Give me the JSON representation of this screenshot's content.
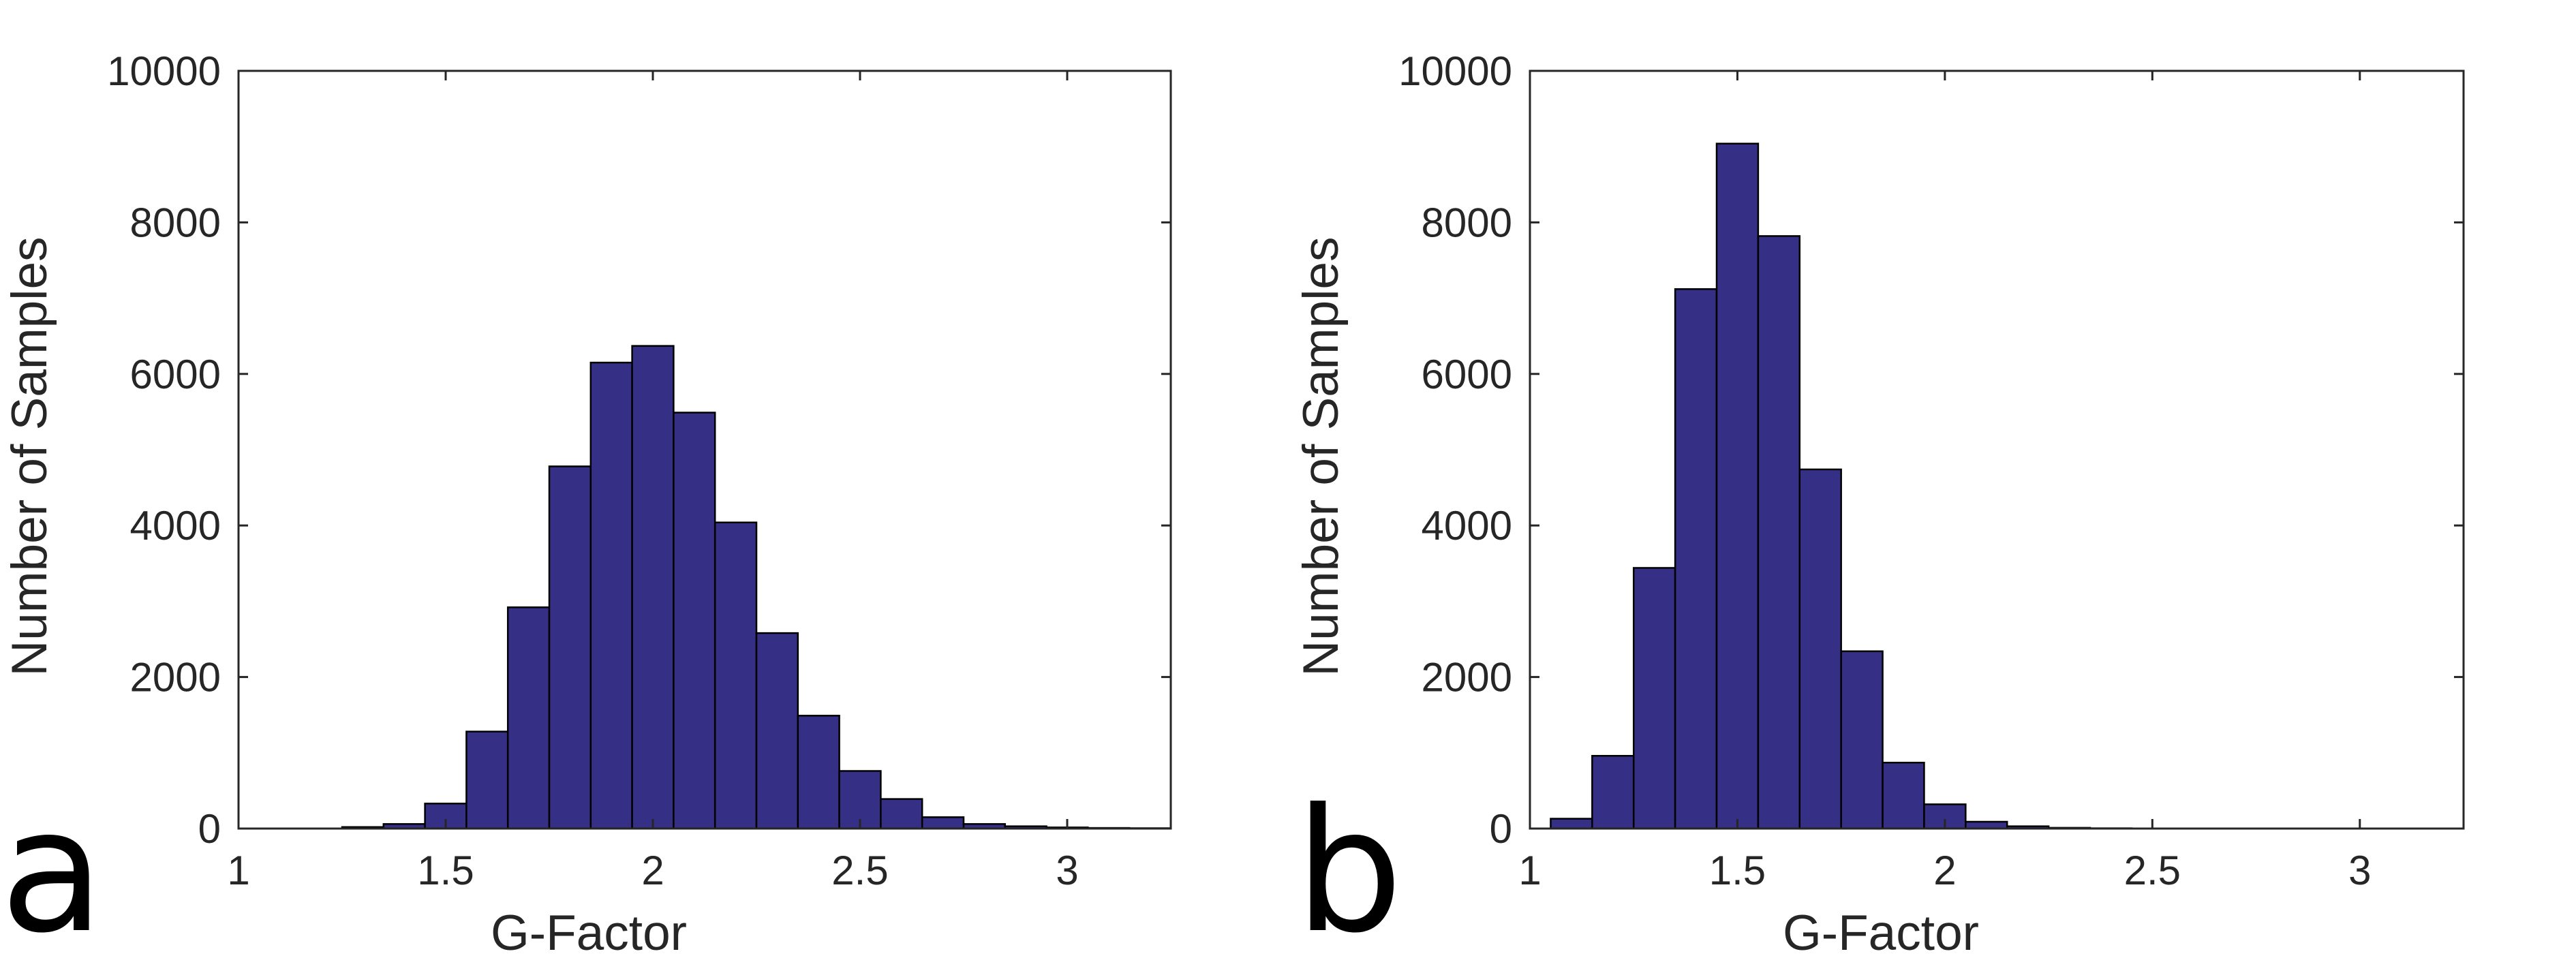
{
  "chart_data": [
    {
      "type": "bar",
      "panel_label": "a",
      "xlabel": "G-Factor",
      "ylabel": "Number of Samples",
      "xlim": [
        1,
        3.25
      ],
      "ylim": [
        0,
        10000
      ],
      "xticks": [
        1,
        1.5,
        2,
        2.5,
        3
      ],
      "xtick_labels": [
        "1",
        "1.5",
        "2",
        "2.5",
        "3"
      ],
      "yticks": [
        0,
        2000,
        4000,
        6000,
        8000,
        10000
      ],
      "ytick_labels": [
        "0",
        "2000",
        "4000",
        "6000",
        "8000",
        "10000"
      ],
      "grid": false,
      "bar_color": "#352F86",
      "bin_width": 0.1,
      "bins": [
        {
          "x0": 1.25,
          "value": 20
        },
        {
          "x0": 1.35,
          "value": 60
        },
        {
          "x0": 1.45,
          "value": 330
        },
        {
          "x0": 1.55,
          "value": 1280
        },
        {
          "x0": 1.65,
          "value": 2920
        },
        {
          "x0": 1.75,
          "value": 4780
        },
        {
          "x0": 1.85,
          "value": 6150
        },
        {
          "x0": 1.95,
          "value": 6370
        },
        {
          "x0": 2.05,
          "value": 5490
        },
        {
          "x0": 2.15,
          "value": 4040
        },
        {
          "x0": 2.25,
          "value": 2580
        },
        {
          "x0": 2.35,
          "value": 1490
        },
        {
          "x0": 2.45,
          "value": 760
        },
        {
          "x0": 2.55,
          "value": 390
        },
        {
          "x0": 2.65,
          "value": 150
        },
        {
          "x0": 2.75,
          "value": 60
        },
        {
          "x0": 2.85,
          "value": 30
        },
        {
          "x0": 2.95,
          "value": 15
        },
        {
          "x0": 3.05,
          "value": 8
        },
        {
          "x0": 3.15,
          "value": 5
        }
      ]
    },
    {
      "type": "bar",
      "panel_label": "b",
      "xlabel": "G-Factor",
      "ylabel": "Number of Samples",
      "xlim": [
        1,
        3.25
      ],
      "ylim": [
        0,
        10000
      ],
      "xticks": [
        1,
        1.5,
        2,
        2.5,
        3
      ],
      "xtick_labels": [
        "1",
        "1.5",
        "2",
        "2.5",
        "3"
      ],
      "yticks": [
        0,
        2000,
        4000,
        6000,
        8000,
        10000
      ],
      "ytick_labels": [
        "0",
        "2000",
        "4000",
        "6000",
        "8000",
        "10000"
      ],
      "grid": false,
      "bar_color": "#352F86",
      "bin_width": 0.1,
      "bins": [
        {
          "x0": 1.05,
          "value": 130
        },
        {
          "x0": 1.15,
          "value": 960
        },
        {
          "x0": 1.25,
          "value": 3440
        },
        {
          "x0": 1.35,
          "value": 7120
        },
        {
          "x0": 1.45,
          "value": 9040
        },
        {
          "x0": 1.55,
          "value": 7820
        },
        {
          "x0": 1.65,
          "value": 4740
        },
        {
          "x0": 1.75,
          "value": 2340
        },
        {
          "x0": 1.85,
          "value": 870
        },
        {
          "x0": 1.95,
          "value": 320
        },
        {
          "x0": 2.05,
          "value": 90
        },
        {
          "x0": 2.15,
          "value": 30
        },
        {
          "x0": 2.25,
          "value": 10
        },
        {
          "x0": 2.35,
          "value": 4
        }
      ]
    }
  ]
}
